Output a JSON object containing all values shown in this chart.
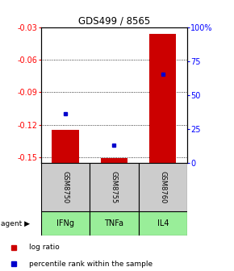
{
  "title": "GDS499 / 8565",
  "samples": [
    "GSM8750",
    "GSM8755",
    "GSM8760"
  ],
  "agents": [
    "IFNg",
    "TNFa",
    "IL4"
  ],
  "log_ratios": [
    -0.125,
    -0.151,
    -0.036
  ],
  "percentile_ranks": [
    36,
    13,
    65
  ],
  "ylim_left": [
    -0.155,
    -0.03
  ],
  "ylim_right": [
    0,
    100
  ],
  "yticks_left": [
    -0.15,
    -0.12,
    -0.09,
    -0.06,
    -0.03
  ],
  "yticks_right": [
    0,
    25,
    50,
    75,
    100
  ],
  "bar_color": "#cc0000",
  "dot_color": "#0000cc",
  "agent_bg": "#99ee99",
  "sample_box_color": "#cccccc",
  "legend_bar_label": "log ratio",
  "legend_dot_label": "percentile rank within the sample",
  "bar_width": 0.55
}
